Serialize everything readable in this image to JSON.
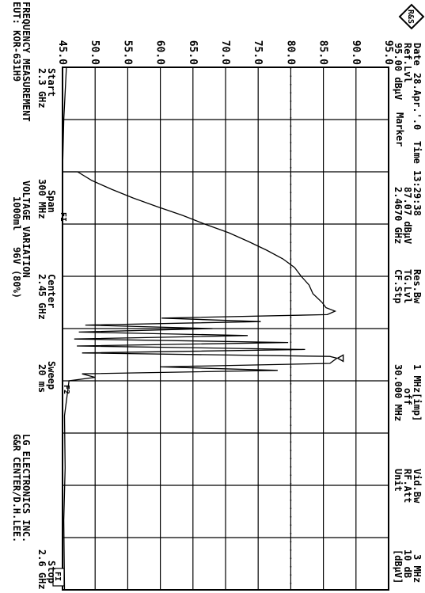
{
  "header": {
    "date_label": "Date",
    "date_value": "28.Apr.'.0",
    "time_label": "Time",
    "time_value": "13:29:38",
    "ref_label": "Ref.Lvl",
    "ref_value": "95.00 dBµV",
    "marker_label": "Marker",
    "marker_level": "87.07 dBµV",
    "marker_freq": "2.4670 GHz",
    "res_bw_label": "Res.Bw",
    "res_bw_value": "1 MHz[imp]",
    "tg_lvl_label": "TG.Lvl",
    "tg_lvl_value": "off",
    "cf_stp_label": "CF.Stp",
    "cf_stp_value": "30.000 MHz",
    "vid_bw_label": "Vid.Bw",
    "vid_bw_value": "3 MHz",
    "rf_att_label": "RF.Att",
    "rf_att_value": "10 dB",
    "unit_label": "Unit",
    "unit_value": "[dBµV]"
  },
  "footer": {
    "start_label": "Start",
    "start_value": "2.3 GHz",
    "span_label": "Span",
    "span_value": "300 MHz",
    "center_label": "Center",
    "center_value": "2.45 GHz",
    "sweep_label": "Sweep",
    "sweep_value": "20 ms",
    "stop_label": "Stop",
    "stop_value": "2.6 GHz",
    "info_line1_a": "FREQUENCY MEASUREMENT",
    "info_line1_b": "VOLTAGE VARIATION",
    "info_line1_c": "LG ELECTRONICS INC.",
    "info_line2_a": "EUT: KOR-631H9",
    "info_line2_b": "1000ml",
    "info_line2_c": "96V  (80%)",
    "info_line2_d": "G&R CENTER/D.H.LEE."
  },
  "annotations": {
    "fi_top": "FI",
    "fi_box": "FI",
    "f2": "F2"
  },
  "chart_data": {
    "type": "line",
    "xlabel": "",
    "ylabel": "",
    "unit": "dBµV",
    "xlim": [
      2.3,
      2.6
    ],
    "ylim": [
      45.0,
      95.0
    ],
    "y_ticks": [
      "45.0",
      "50.0",
      "55.0",
      "60.0",
      "65.0",
      "70.0",
      "75.0",
      "80.0",
      "85.0",
      "90.0",
      "95.0"
    ],
    "display_line": 80.0,
    "grid": true,
    "marker": {
      "x": 2.467,
      "y": 87.07
    },
    "series": [
      {
        "x": [
          2.3,
          2.33,
          2.36,
          2.36,
          2.365,
          2.37,
          2.375,
          2.38,
          2.385,
          2.39,
          2.395,
          2.4,
          2.405,
          2.41,
          2.415,
          2.42,
          2.425,
          2.43,
          2.435,
          2.438,
          2.44,
          2.442,
          2.444,
          2.446,
          2.448,
          2.45,
          2.452,
          2.454,
          2.456,
          2.458,
          2.46,
          2.462,
          2.464,
          2.466,
          2.467,
          2.47,
          2.472,
          2.474,
          2.476,
          2.478,
          2.48,
          2.5,
          2.53,
          2.56,
          2.6
        ],
        "y": [
          45.6,
          45.2,
          45.0,
          47.3,
          49.5,
          52.5,
          55.8,
          59.5,
          63.4,
          66.8,
          70.5,
          73.5,
          76.3,
          78.8,
          80.6,
          81.6,
          82.8,
          83.4,
          84.8,
          85.4,
          86.8,
          85.6,
          60.2,
          75.4,
          48.5,
          68.0,
          47.5,
          73.4,
          46.8,
          79.6,
          47.2,
          82.2,
          48.0,
          86.0,
          87.07,
          86.0,
          60.0,
          78.0,
          48.0,
          50.0,
          46.0,
          45.3,
          45.4,
          45.2,
          45.3
        ]
      }
    ]
  }
}
